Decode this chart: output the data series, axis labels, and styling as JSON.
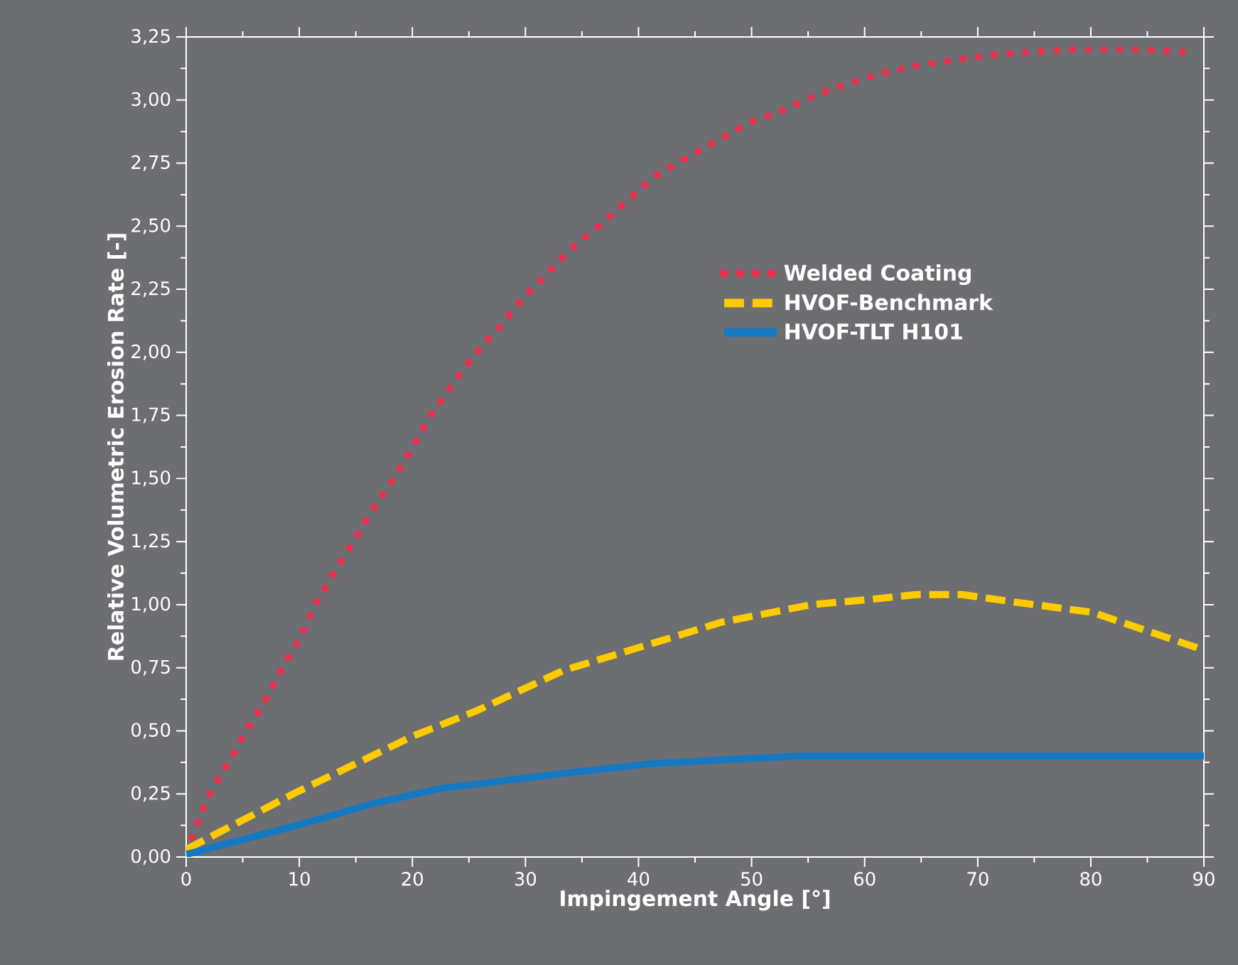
{
  "chart_data": {
    "type": "line",
    "xlabel": "Impingement Angle [°]",
    "ylabel": "Relative Volumetric Erosion Rate [-]",
    "xlim": [
      0,
      90
    ],
    "ylim": [
      0,
      3.25
    ],
    "xticks": [
      0,
      10,
      20,
      30,
      40,
      50,
      60,
      70,
      80,
      90
    ],
    "yticks": [
      {
        "value": 0,
        "label": "0,00"
      },
      {
        "value": 0.25,
        "label": "0,25"
      },
      {
        "value": 0.5,
        "label": "0,50"
      },
      {
        "value": 0.75,
        "label": "0,75"
      },
      {
        "value": 1,
        "label": "1,00"
      },
      {
        "value": 1.25,
        "label": "1,25"
      },
      {
        "value": 1.5,
        "label": "1,50"
      },
      {
        "value": 1.75,
        "label": "1,75"
      },
      {
        "value": 2,
        "label": "2,00"
      },
      {
        "value": 2.25,
        "label": "2,25"
      },
      {
        "value": 2.5,
        "label": "2,50"
      },
      {
        "value": 2.75,
        "label": "2,75"
      },
      {
        "value": 3,
        "label": "3,00"
      },
      {
        "value": 3.25,
        "label": "3,25"
      }
    ],
    "grid": false,
    "legend": "right",
    "marker": "none",
    "series": [
      {
        "name": "Welded Coating",
        "color": "#ef2d4a",
        "line_style": "dotted",
        "x": [
          0,
          1.2,
          2.2,
          3.7,
          5.3,
          7.0,
          8.5,
          10.1,
          11.4,
          13.1,
          14.8,
          16.4,
          18.2,
          20.0,
          21.6,
          23.5,
          25.5,
          27.7,
          29.7,
          31.9,
          34.0,
          36.5,
          39.0,
          41.5,
          44.2,
          47.0,
          49.8,
          52.8,
          55.7,
          58.8,
          61.9,
          65.0,
          68.1,
          71.5,
          74.6,
          78.0,
          81.1,
          84.5,
          88.2
        ],
        "values": [
          0.02,
          0.16,
          0.26,
          0.37,
          0.5,
          0.62,
          0.75,
          0.87,
          1.0,
          1.13,
          1.25,
          1.37,
          1.49,
          1.62,
          1.75,
          1.87,
          1.99,
          2.1,
          2.21,
          2.31,
          2.41,
          2.5,
          2.6,
          2.7,
          2.77,
          2.84,
          2.91,
          2.96,
          3.02,
          3.07,
          3.11,
          3.14,
          3.16,
          3.18,
          3.19,
          3.2,
          3.2,
          3.2,
          3.19
        ]
      },
      {
        "name": "HVOF-Benchmark",
        "color": "#fecb00",
        "line_style": "dashed",
        "x": [
          0,
          9.9,
          20.1,
          25.7,
          33.4,
          39.3,
          47.3,
          55.3,
          60.3,
          64.6,
          68.6,
          73.3,
          80.1,
          90
        ],
        "values": [
          0.03,
          0.26,
          0.48,
          0.58,
          0.74,
          0.82,
          0.93,
          1.0,
          1.02,
          1.04,
          1.04,
          1.01,
          0.97,
          0.82
        ]
      },
      {
        "name": "HVOF-TLT H101",
        "color": "#1579c1",
        "line_style": "solid",
        "x": [
          0,
          10.2,
          16.4,
          22.3,
          33.1,
          41.1,
          54.1,
          90
        ],
        "values": [
          0.01,
          0.13,
          0.21,
          0.27,
          0.33,
          0.37,
          0.4,
          0.4
        ]
      }
    ]
  }
}
